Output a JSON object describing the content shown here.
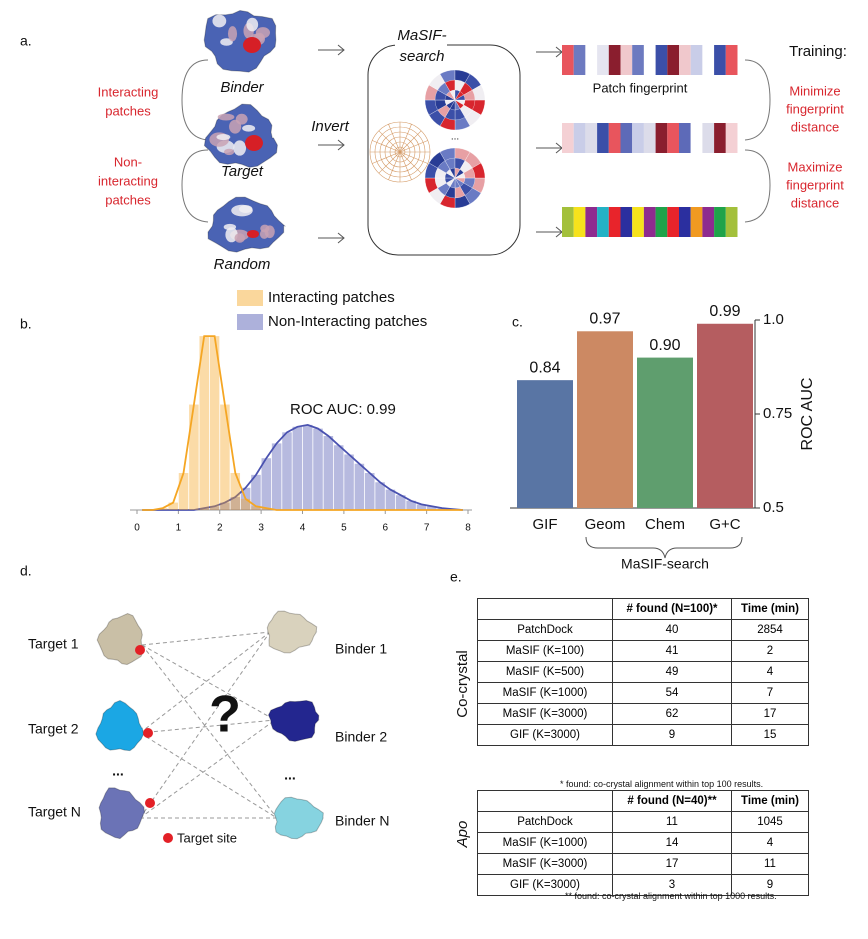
{
  "panels": {
    "a": {
      "label": "a.",
      "interacting": [
        "Interacting",
        "patches"
      ],
      "non_interacting": [
        "Non-",
        "interacting",
        "patches"
      ],
      "binder": "Binder",
      "target": "Target",
      "random": "Random",
      "method": [
        "MaSIF-",
        "search"
      ],
      "invert": "Invert",
      "ellipsis": "...",
      "fingerprint": "Patch fingerprint",
      "training": "Training:",
      "minimize": [
        "Minimize",
        "fingerprint",
        "distance"
      ],
      "maximize": [
        "Maximize",
        "fingerprint",
        "distance"
      ]
    },
    "b": {
      "label": "b."
    },
    "c": {
      "label": "c."
    },
    "d": {
      "label": "d.",
      "targets": [
        "Target 1",
        "Target 2",
        "Target N"
      ],
      "binders": [
        "Binder 1",
        "Binder 2",
        "Binder N"
      ],
      "ellipsis": "...",
      "question": "?",
      "legend": "Target site"
    },
    "e": {
      "label": "e.",
      "tables": [
        {
          "side_label": "Co-crystal",
          "header": [
            "# found (N=100)*",
            "Time (min)"
          ],
          "rows": [
            [
              "PatchDock",
              40,
              2854
            ],
            [
              "MaSIF (K=100)",
              41,
              2
            ],
            [
              "MaSIF (K=500)",
              49,
              4
            ],
            [
              "MaSIF (K=1000)",
              54,
              7
            ],
            [
              "MaSIF (K=3000)",
              62,
              17
            ],
            [
              "GIF (K=3000)",
              9,
              15
            ]
          ],
          "footnote": "* found: co-crystal alignment within top 100 results."
        },
        {
          "side_label": "Apo",
          "header": [
            "# found (N=40)**",
            "Time (min)"
          ],
          "rows": [
            [
              "PatchDock",
              11,
              1045
            ],
            [
              "MaSIF (K=1000)",
              14,
              4
            ],
            [
              "MaSIF (K=3000)",
              17,
              11
            ],
            [
              "GIF (K=3000)",
              3,
              9
            ]
          ],
          "footnote": "** found: co-crystal alignment within top 1000 results."
        }
      ]
    }
  },
  "chart_data": [
    {
      "type": "histogram",
      "bins": [
        0,
        0.25,
        0.5,
        0.75,
        1,
        1.25,
        1.5,
        1.75,
        2,
        2.25,
        2.5,
        2.75,
        3,
        3.25,
        3.5,
        3.75,
        4,
        4.25,
        4.5,
        4.75,
        5,
        5.25,
        5.5,
        5.75,
        6,
        6.25,
        6.5,
        6.75,
        7,
        7.25,
        7.5,
        7.75,
        8
      ],
      "series": [
        {
          "name": "Non-Interacting patches",
          "color": "#4a52b0",
          "values": [
            0,
            0,
            0,
            0,
            0,
            0,
            0.01,
            0.02,
            0.04,
            0.07,
            0.12,
            0.19,
            0.28,
            0.36,
            0.42,
            0.45,
            0.46,
            0.44,
            0.4,
            0.35,
            0.3,
            0.25,
            0.2,
            0.15,
            0.11,
            0.08,
            0.05,
            0.03,
            0.02,
            0.01,
            0.005,
            0
          ]
        },
        {
          "name": "Interacting patches",
          "color": "#f5a623",
          "values": [
            0,
            0,
            0.01,
            0.04,
            0.2,
            0.57,
            0.94,
            0.94,
            0.57,
            0.2,
            0.06,
            0.02,
            0.01,
            0,
            0,
            0,
            0,
            0,
            0,
            0,
            0,
            0,
            0,
            0,
            0,
            0,
            0,
            0,
            0,
            0,
            0,
            0
          ]
        }
      ],
      "xlim": [
        0,
        8
      ],
      "xticks": [
        0,
        1,
        2,
        3,
        4,
        5,
        6,
        7,
        8
      ],
      "annotation": "ROC AUC: 0.99"
    },
    {
      "type": "bar",
      "categories": [
        "GIF",
        "Geom",
        "Chem",
        "G+C"
      ],
      "values": [
        0.84,
        0.97,
        0.9,
        0.99
      ],
      "value_labels": [
        "0.84",
        "0.97",
        "0.90",
        "0.99"
      ],
      "colors": [
        "#5975a4",
        "#cc8963",
        "#5f9e6e",
        "#b55d60"
      ],
      "ylim": [
        0.5,
        1.0
      ],
      "yticks": [
        0.5,
        0.75,
        {
          "value": 1.0,
          "label": "1.0"
        }
      ],
      "ylabel": "ROC AUC",
      "group_label": "MaSIF-search"
    }
  ]
}
